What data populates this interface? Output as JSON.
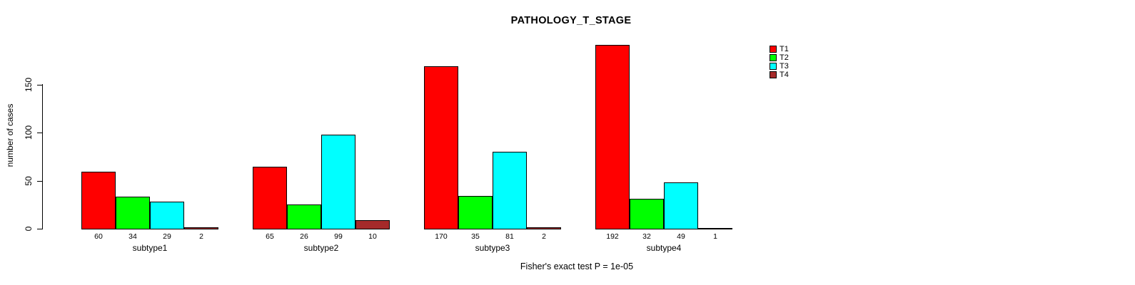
{
  "title": "PATHOLOGY_T_STAGE",
  "ylabel": "number of cases",
  "caption": "Fisher's exact test P = 1e-05",
  "chart_data": {
    "type": "bar",
    "title": "PATHOLOGY_T_STAGE",
    "xlabel": "",
    "ylabel": "number of cases",
    "categories": [
      "subtype1",
      "subtype2",
      "subtype3",
      "subtype4"
    ],
    "series": [
      {
        "name": "T1",
        "color": "#ff0000",
        "values": [
          60,
          65,
          170,
          192
        ]
      },
      {
        "name": "T2",
        "color": "#00ff00",
        "values": [
          34,
          26,
          35,
          32
        ]
      },
      {
        "name": "T3",
        "color": "#00ffff",
        "values": [
          29,
          99,
          81,
          49
        ]
      },
      {
        "name": "T4",
        "color": "#a52a2a",
        "values": [
          2,
          10,
          2,
          1
        ]
      }
    ],
    "yticks": [
      0,
      50,
      100,
      150
    ],
    "ylim": [
      0,
      195
    ],
    "grid": false,
    "legend_position": "top-right",
    "bar_value_labels": true,
    "annotation": "Fisher's exact test P = 1e-05"
  }
}
